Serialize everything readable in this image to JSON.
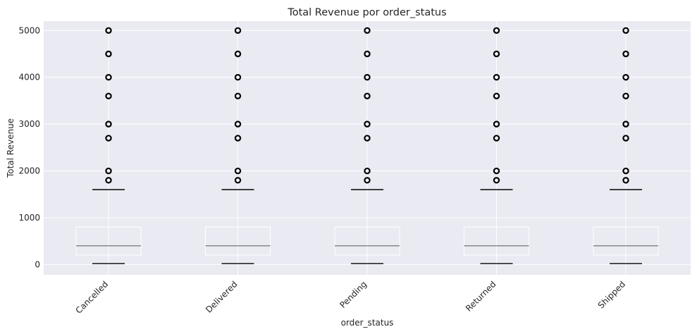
{
  "chart_data": {
    "type": "box",
    "title": "Total Revenue por order_status",
    "xlabel": "order_status",
    "ylabel": "Total Revenue",
    "ylim": [
      -220,
      5200
    ],
    "yticks": [
      0,
      1000,
      2000,
      3000,
      4000,
      5000
    ],
    "grid": true,
    "categories": [
      "Cancelled",
      "Delivered",
      "Pending",
      "Returned",
      "Shipped"
    ],
    "boxes": [
      {
        "category": "Cancelled",
        "whisker_low": 20,
        "q1": 200,
        "median": 400,
        "q3": 800,
        "whisker_high": 1600,
        "fliers": [
          1800,
          2000,
          2700,
          3000,
          3600,
          4000,
          4500,
          5000
        ]
      },
      {
        "category": "Delivered",
        "whisker_low": 20,
        "q1": 200,
        "median": 400,
        "q3": 800,
        "whisker_high": 1600,
        "fliers": [
          1800,
          2000,
          2700,
          3000,
          3600,
          4000,
          4500,
          5000
        ]
      },
      {
        "category": "Pending",
        "whisker_low": 20,
        "q1": 200,
        "median": 400,
        "q3": 800,
        "whisker_high": 1600,
        "fliers": [
          1800,
          2000,
          2700,
          3000,
          3600,
          4000,
          4500,
          5000
        ]
      },
      {
        "category": "Returned",
        "whisker_low": 20,
        "q1": 200,
        "median": 400,
        "q3": 800,
        "whisker_high": 1600,
        "fliers": [
          1800,
          2000,
          2700,
          3000,
          3600,
          4000,
          4500,
          5000
        ]
      },
      {
        "category": "Shipped",
        "whisker_low": 20,
        "q1": 200,
        "median": 400,
        "q3": 800,
        "whisker_high": 1600,
        "fliers": [
          1800,
          2000,
          2700,
          3000,
          3600,
          4000,
          4500,
          5000
        ]
      }
    ],
    "colors": {
      "plot_background": "#eaeaf2",
      "grid": "#ffffff",
      "median": "#7f7f7f",
      "caps": "#000000",
      "fliers": "#000000"
    }
  }
}
